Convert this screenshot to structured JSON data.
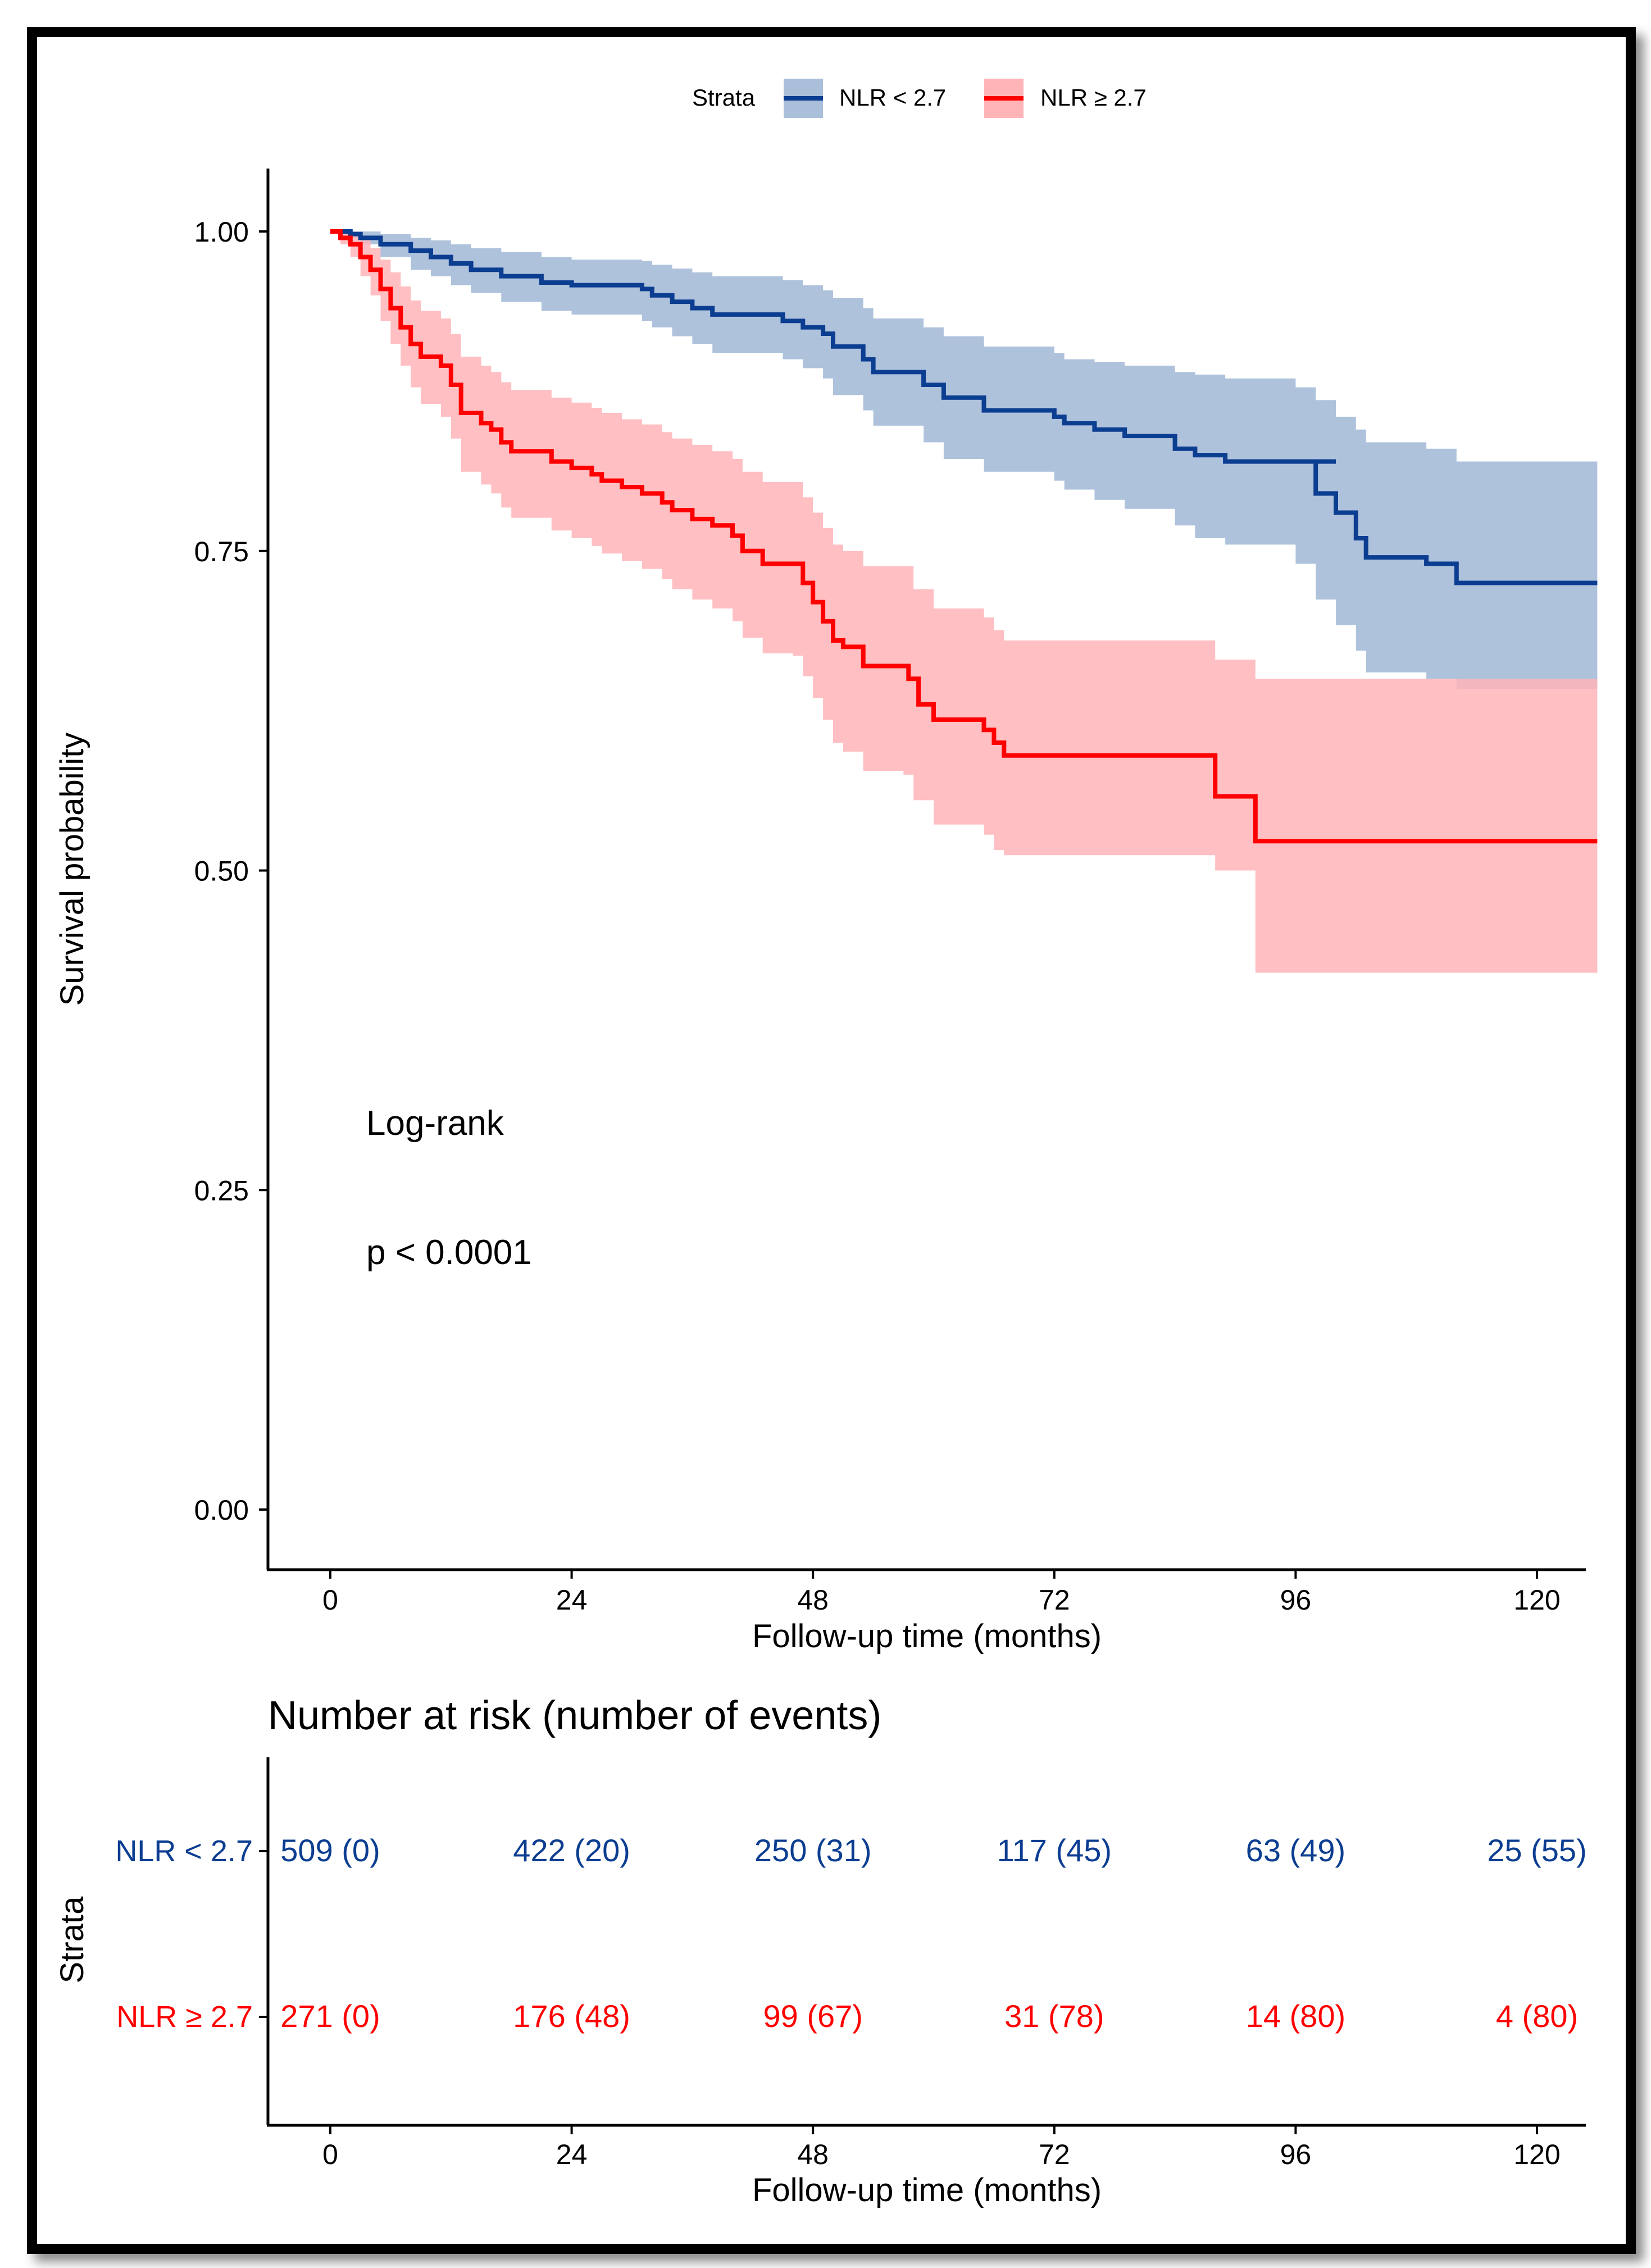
{
  "chart_data": {
    "type": "line",
    "subtype": "kaplan-meier",
    "legend": {
      "title": "Strata",
      "entries": [
        "NLR < 2.7",
        "NLR ≥ 2.7"
      ],
      "position": "top"
    },
    "colors": {
      "low": "#0b3d91",
      "high": "#ff0000",
      "low_band": "#aabfda",
      "high_band": "#ffb4b8"
    },
    "xlabel": "Follow-up time (months)",
    "ylabel": "Survival probability",
    "xlim": [
      -3,
      126
    ],
    "ylim": [
      -0.05,
      1.05
    ],
    "xticks": [
      "0",
      "24",
      "48",
      "72",
      "96",
      "120"
    ],
    "yticks": [
      "0.00",
      "0.25",
      "0.50",
      "0.75",
      "1.00"
    ],
    "annotation": {
      "line1": "Log-rank",
      "line2": "p < 0.0001"
    },
    "series": [
      {
        "name": "NLR < 2.7",
        "curve": [
          [
            0,
            1.0
          ],
          [
            2,
            0.998
          ],
          [
            3,
            0.995
          ],
          [
            5,
            0.99
          ],
          [
            8,
            0.985
          ],
          [
            10,
            0.98
          ],
          [
            12,
            0.975
          ],
          [
            14,
            0.97
          ],
          [
            17,
            0.965
          ],
          [
            21,
            0.96
          ],
          [
            24,
            0.958
          ],
          [
            31,
            0.955
          ],
          [
            32,
            0.95
          ],
          [
            34,
            0.945
          ],
          [
            36,
            0.94
          ],
          [
            38,
            0.935
          ],
          [
            45,
            0.93
          ],
          [
            47,
            0.925
          ],
          [
            49,
            0.92
          ],
          [
            50,
            0.91
          ],
          [
            53,
            0.9
          ],
          [
            54,
            0.89
          ],
          [
            59,
            0.88
          ],
          [
            61,
            0.87
          ],
          [
            65,
            0.86
          ],
          [
            72,
            0.855
          ],
          [
            73,
            0.85
          ],
          [
            76,
            0.845
          ],
          [
            79,
            0.84
          ],
          [
            84,
            0.83
          ],
          [
            86,
            0.825
          ],
          [
            89,
            0.82
          ],
          [
            100,
            0.82
          ],
          [
            98,
            0.818
          ],
          [
            98,
            0.795
          ],
          [
            100,
            0.78
          ],
          [
            102,
            0.76
          ],
          [
            103,
            0.745
          ],
          [
            106,
            0.745
          ],
          [
            109,
            0.74
          ],
          [
            112,
            0.725
          ],
          [
            126,
            0.725
          ]
        ],
        "lower": [
          [
            0,
            1.0
          ],
          [
            2,
            0.995
          ],
          [
            3,
            0.99
          ],
          [
            5,
            0.98
          ],
          [
            8,
            0.97
          ],
          [
            10,
            0.965
          ],
          [
            12,
            0.958
          ],
          [
            14,
            0.952
          ],
          [
            17,
            0.945
          ],
          [
            21,
            0.938
          ],
          [
            24,
            0.935
          ],
          [
            31,
            0.93
          ],
          [
            32,
            0.925
          ],
          [
            34,
            0.918
          ],
          [
            36,
            0.912
          ],
          [
            38,
            0.905
          ],
          [
            45,
            0.9
          ],
          [
            47,
            0.893
          ],
          [
            49,
            0.885
          ],
          [
            50,
            0.872
          ],
          [
            53,
            0.86
          ],
          [
            54,
            0.848
          ],
          [
            59,
            0.835
          ],
          [
            61,
            0.822
          ],
          [
            65,
            0.812
          ],
          [
            72,
            0.805
          ],
          [
            73,
            0.798
          ],
          [
            76,
            0.79
          ],
          [
            79,
            0.783
          ],
          [
            84,
            0.77
          ],
          [
            86,
            0.76
          ],
          [
            89,
            0.755
          ],
          [
            96,
            0.74
          ],
          [
            98,
            0.712
          ],
          [
            100,
            0.692
          ],
          [
            102,
            0.672
          ],
          [
            103,
            0.655
          ],
          [
            106,
            0.655
          ],
          [
            109,
            0.65
          ],
          [
            112,
            0.642
          ],
          [
            126,
            0.642
          ]
        ],
        "upper": [
          [
            0,
            1.0
          ],
          [
            2,
            1.0
          ],
          [
            3,
            1.0
          ],
          [
            5,
            0.998
          ],
          [
            8,
            0.995
          ],
          [
            10,
            0.993
          ],
          [
            12,
            0.99
          ],
          [
            14,
            0.987
          ],
          [
            17,
            0.984
          ],
          [
            21,
            0.98
          ],
          [
            24,
            0.978
          ],
          [
            31,
            0.977
          ],
          [
            32,
            0.974
          ],
          [
            34,
            0.971
          ],
          [
            36,
            0.968
          ],
          [
            38,
            0.965
          ],
          [
            45,
            0.962
          ],
          [
            47,
            0.958
          ],
          [
            49,
            0.954
          ],
          [
            50,
            0.948
          ],
          [
            53,
            0.94
          ],
          [
            54,
            0.932
          ],
          [
            59,
            0.925
          ],
          [
            61,
            0.918
          ],
          [
            65,
            0.91
          ],
          [
            72,
            0.905
          ],
          [
            73,
            0.9
          ],
          [
            76,
            0.898
          ],
          [
            79,
            0.895
          ],
          [
            84,
            0.89
          ],
          [
            86,
            0.888
          ],
          [
            89,
            0.885
          ],
          [
            96,
            0.878
          ],
          [
            98,
            0.868
          ],
          [
            100,
            0.855
          ],
          [
            102,
            0.845
          ],
          [
            103,
            0.835
          ],
          [
            106,
            0.835
          ],
          [
            109,
            0.83
          ],
          [
            112,
            0.82
          ],
          [
            126,
            0.82
          ]
        ]
      },
      {
        "name": "NLR ≥ 2.7",
        "curve": [
          [
            0,
            1.0
          ],
          [
            1,
            0.995
          ],
          [
            2,
            0.99
          ],
          [
            3,
            0.98
          ],
          [
            4,
            0.97
          ],
          [
            5,
            0.955
          ],
          [
            6,
            0.94
          ],
          [
            7,
            0.925
          ],
          [
            8,
            0.912
          ],
          [
            9,
            0.902
          ],
          [
            11,
            0.895
          ],
          [
            12,
            0.88
          ],
          [
            13,
            0.858
          ],
          [
            15,
            0.85
          ],
          [
            16,
            0.845
          ],
          [
            17,
            0.835
          ],
          [
            18,
            0.828
          ],
          [
            22,
            0.82
          ],
          [
            24,
            0.815
          ],
          [
            26,
            0.81
          ],
          [
            27,
            0.805
          ],
          [
            29,
            0.8
          ],
          [
            31,
            0.795
          ],
          [
            33,
            0.788
          ],
          [
            34,
            0.782
          ],
          [
            36,
            0.775
          ],
          [
            38,
            0.77
          ],
          [
            40,
            0.762
          ],
          [
            41,
            0.75
          ],
          [
            43,
            0.74
          ],
          [
            46,
            0.74
          ],
          [
            47,
            0.725
          ],
          [
            48,
            0.71
          ],
          [
            49,
            0.695
          ],
          [
            50,
            0.68
          ],
          [
            51,
            0.675
          ],
          [
            53,
            0.66
          ],
          [
            57,
            0.66
          ],
          [
            57.5,
            0.65
          ],
          [
            58.5,
            0.63
          ],
          [
            60,
            0.618
          ],
          [
            65,
            0.61
          ],
          [
            66,
            0.6
          ],
          [
            67,
            0.59
          ],
          [
            88,
            0.59
          ],
          [
            88,
            0.558
          ],
          [
            92,
            0.558
          ],
          [
            92,
            0.523
          ],
          [
            126,
            0.523
          ]
        ],
        "lower": [
          [
            0,
            1.0
          ],
          [
            1,
            0.99
          ],
          [
            2,
            0.98
          ],
          [
            3,
            0.965
          ],
          [
            4,
            0.95
          ],
          [
            5,
            0.93
          ],
          [
            6,
            0.912
          ],
          [
            7,
            0.895
          ],
          [
            8,
            0.878
          ],
          [
            9,
            0.865
          ],
          [
            11,
            0.855
          ],
          [
            12,
            0.838
          ],
          [
            13,
            0.812
          ],
          [
            15,
            0.802
          ],
          [
            16,
            0.795
          ],
          [
            17,
            0.784
          ],
          [
            18,
            0.776
          ],
          [
            22,
            0.766
          ],
          [
            24,
            0.76
          ],
          [
            26,
            0.754
          ],
          [
            27,
            0.748
          ],
          [
            29,
            0.742
          ],
          [
            31,
            0.736
          ],
          [
            33,
            0.728
          ],
          [
            34,
            0.72
          ],
          [
            36,
            0.712
          ],
          [
            38,
            0.705
          ],
          [
            40,
            0.695
          ],
          [
            41,
            0.682
          ],
          [
            43,
            0.67
          ],
          [
            46,
            0.668
          ],
          [
            47,
            0.652
          ],
          [
            48,
            0.635
          ],
          [
            49,
            0.618
          ],
          [
            50,
            0.6
          ],
          [
            51,
            0.593
          ],
          [
            53,
            0.578
          ],
          [
            57,
            0.575
          ],
          [
            58,
            0.555
          ],
          [
            60,
            0.536
          ],
          [
            65,
            0.528
          ],
          [
            66,
            0.516
          ],
          [
            67,
            0.512
          ],
          [
            88,
            0.5
          ],
          [
            92,
            0.42
          ],
          [
            126,
            0.42
          ]
        ],
        "upper": [
          [
            0,
            1.0
          ],
          [
            1,
            1.0
          ],
          [
            2,
            0.998
          ],
          [
            3,
            0.993
          ],
          [
            4,
            0.987
          ],
          [
            5,
            0.978
          ],
          [
            6,
            0.968
          ],
          [
            7,
            0.957
          ],
          [
            8,
            0.946
          ],
          [
            9,
            0.938
          ],
          [
            11,
            0.932
          ],
          [
            12,
            0.92
          ],
          [
            13,
            0.902
          ],
          [
            15,
            0.895
          ],
          [
            16,
            0.89
          ],
          [
            17,
            0.882
          ],
          [
            18,
            0.876
          ],
          [
            22,
            0.87
          ],
          [
            24,
            0.866
          ],
          [
            26,
            0.862
          ],
          [
            27,
            0.858
          ],
          [
            29,
            0.853
          ],
          [
            31,
            0.849
          ],
          [
            33,
            0.843
          ],
          [
            34,
            0.838
          ],
          [
            36,
            0.833
          ],
          [
            38,
            0.828
          ],
          [
            40,
            0.822
          ],
          [
            41,
            0.812
          ],
          [
            43,
            0.804
          ],
          [
            46,
            0.804
          ],
          [
            47,
            0.792
          ],
          [
            48,
            0.78
          ],
          [
            49,
            0.768
          ],
          [
            50,
            0.755
          ],
          [
            51,
            0.75
          ],
          [
            53,
            0.738
          ],
          [
            57,
            0.738
          ],
          [
            58,
            0.72
          ],
          [
            60,
            0.705
          ],
          [
            65,
            0.698
          ],
          [
            66,
            0.688
          ],
          [
            67,
            0.68
          ],
          [
            88,
            0.665
          ],
          [
            92,
            0.65
          ],
          [
            126,
            0.65
          ]
        ]
      }
    ],
    "risk_table": {
      "title": "Number at risk (number of events)",
      "ylabel": "Strata",
      "xlabel": "Follow-up time (months)",
      "xticks": [
        "0",
        "24",
        "48",
        "72",
        "96",
        "120"
      ],
      "rows": [
        {
          "label": "NLR < 2.7",
          "values": [
            "509 (0)",
            "422 (20)",
            "250 (31)",
            "117 (45)",
            "63 (49)",
            "25 (55)"
          ]
        },
        {
          "label": "NLR ≥ 2.7",
          "values": [
            "271 (0)",
            "176 (48)",
            "99 (67)",
            "31 (78)",
            "14 (80)",
            "4 (80)"
          ]
        }
      ]
    }
  }
}
